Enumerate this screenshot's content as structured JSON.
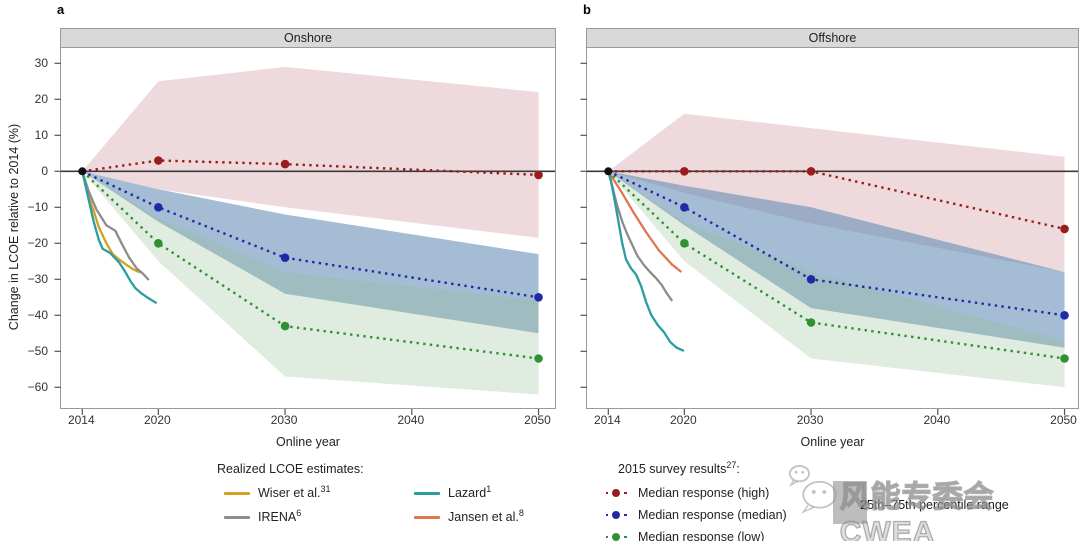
{
  "chart_data": {
    "type": "line",
    "axes": {
      "y_label": "Change in LCOE relative to 2014 (%)",
      "x_label": "Online year",
      "ylim": [
        -66,
        34
      ],
      "xlim": [
        2012.3,
        2051.5
      ],
      "y_ticks": [
        {
          "v": 30,
          "label": "30"
        },
        {
          "v": 20,
          "label": "20"
        },
        {
          "v": 10,
          "label": "10"
        },
        {
          "v": 0,
          "label": "0"
        },
        {
          "v": -10,
          "label": "−10"
        },
        {
          "v": -20,
          "label": "−20"
        },
        {
          "v": -30,
          "label": "−30"
        },
        {
          "v": -40,
          "label": "−40"
        },
        {
          "v": -50,
          "label": "−50"
        },
        {
          "v": -60,
          "label": "−60"
        }
      ],
      "x_ticks": [
        {
          "v": 2014,
          "label": "2014"
        },
        {
          "v": 2020,
          "label": "2020"
        },
        {
          "v": 2030,
          "label": "2030"
        },
        {
          "v": 2040,
          "label": "2040"
        },
        {
          "v": 2050,
          "label": "2050"
        }
      ]
    },
    "colors": {
      "survey_high": "#9b1c1c",
      "survey_median": "#2229a9",
      "survey_low": "#2e9132",
      "band_high": "rgba(194,120,130,0.27)",
      "band_median": "rgba(91,135,176,0.55)",
      "band_low": "rgba(143,187,143,0.28)",
      "wiser": "#d5a021",
      "irena": "#8c8c8c",
      "lazard": "#2b9da0",
      "jansen": "#e0764f",
      "zero_line": "#3a3a3a",
      "origin_dot": "#111111",
      "range_box": "#bdbdbd"
    },
    "panels": [
      {
        "panel_label": "a",
        "header": "Onshore",
        "survey": {
          "years": [
            2014,
            2020,
            2030,
            2050
          ],
          "marker_years": [
            2020,
            2030,
            2050
          ],
          "high": [
            0,
            3,
            2,
            -1
          ],
          "median": [
            0,
            -10,
            -24,
            -35
          ],
          "low": [
            0,
            -20,
            -43,
            -52
          ]
        },
        "bands": {
          "high": {
            "top": [
              [
                2014,
                0
              ],
              [
                2020,
                25
              ],
              [
                2030,
                29
              ],
              [
                2050,
                22
              ]
            ],
            "bottom": [
              [
                2014,
                0
              ],
              [
                2020,
                -5
              ],
              [
                2030,
                -10
              ],
              [
                2050,
                -18.5
              ]
            ]
          },
          "median": {
            "top": [
              [
                2014,
                0
              ],
              [
                2020,
                -5
              ],
              [
                2030,
                -12
              ],
              [
                2050,
                -23
              ]
            ],
            "bottom": [
              [
                2014,
                0
              ],
              [
                2020,
                -14
              ],
              [
                2030,
                -34
              ],
              [
                2050,
                -45
              ]
            ]
          },
          "low": {
            "top": [
              [
                2014,
                0
              ],
              [
                2020,
                -13
              ],
              [
                2030,
                -28
              ],
              [
                2050,
                -36
              ]
            ],
            "bottom": [
              [
                2014,
                0
              ],
              [
                2020,
                -25
              ],
              [
                2030,
                -57
              ],
              [
                2050,
                -62
              ]
            ]
          }
        },
        "realized": [
          {
            "key": "wiser",
            "points": [
              [
                2014,
                0
              ],
              [
                2014.4,
                -6
              ],
              [
                2014.9,
                -11
              ],
              [
                2015.3,
                -15.5
              ],
              [
                2015.9,
                -20
              ],
              [
                2016.4,
                -23
              ],
              [
                2016.9,
                -24.5
              ],
              [
                2017.5,
                -26
              ],
              [
                2018,
                -27.2
              ],
              [
                2018.5,
                -28
              ]
            ]
          },
          {
            "key": "irena",
            "points": [
              [
                2014,
                0
              ],
              [
                2014.5,
                -5.5
              ],
              [
                2015.1,
                -10.5
              ],
              [
                2015.9,
                -15
              ],
              [
                2016.6,
                -16.5
              ],
              [
                2017.1,
                -20
              ],
              [
                2017.7,
                -24
              ],
              [
                2018.3,
                -27
              ],
              [
                2018.8,
                -28.5
              ],
              [
                2019.2,
                -30
              ]
            ]
          },
          {
            "key": "lazard",
            "points": [
              [
                2014,
                0
              ],
              [
                2014.35,
                -5.5
              ],
              [
                2014.9,
                -14
              ],
              [
                2015.3,
                -19
              ],
              [
                2015.6,
                -21.5
              ],
              [
                2016.2,
                -22.7
              ],
              [
                2016.9,
                -25.3
              ],
              [
                2017.4,
                -28
              ],
              [
                2017.8,
                -30.5
              ],
              [
                2018.2,
                -32.5
              ],
              [
                2018.7,
                -34
              ],
              [
                2019.2,
                -35.2
              ],
              [
                2019.8,
                -36.5
              ]
            ]
          }
        ]
      },
      {
        "panel_label": "b",
        "header": "Offshore",
        "survey": {
          "years": [
            2014,
            2020,
            2030,
            2050
          ],
          "marker_years": [
            2020,
            2030,
            2050
          ],
          "high": [
            0,
            0,
            0,
            -16
          ],
          "median": [
            0,
            -10,
            -30,
            -40
          ],
          "low": [
            0,
            -20,
            -42,
            -52
          ]
        },
        "bands": {
          "high": {
            "top": [
              [
                2014,
                0
              ],
              [
                2020,
                16
              ],
              [
                2030,
                12
              ],
              [
                2050,
                4
              ]
            ],
            "bottom": [
              [
                2014,
                0
              ],
              [
                2020,
                -6
              ],
              [
                2030,
                -14.5
              ],
              [
                2050,
                -28
              ]
            ]
          },
          "median": {
            "top": [
              [
                2014,
                0
              ],
              [
                2020,
                -4
              ],
              [
                2030,
                -10
              ],
              [
                2050,
                -28
              ]
            ],
            "bottom": [
              [
                2014,
                0
              ],
              [
                2020,
                -15
              ],
              [
                2030,
                -38
              ],
              [
                2050,
                -49
              ]
            ]
          },
          "low": {
            "top": [
              [
                2014,
                0
              ],
              [
                2020,
                -14
              ],
              [
                2030,
                -28
              ],
              [
                2050,
                -47
              ]
            ],
            "bottom": [
              [
                2014,
                0
              ],
              [
                2020,
                -25
              ],
              [
                2030,
                -52
              ],
              [
                2050,
                -60
              ]
            ]
          }
        },
        "realized": [
          {
            "key": "irena",
            "points": [
              [
                2014,
                0
              ],
              [
                2014.3,
                -4
              ],
              [
                2014.7,
                -9.5
              ],
              [
                2015.1,
                -14
              ],
              [
                2015.5,
                -17.5
              ],
              [
                2015.9,
                -20.5
              ],
              [
                2016.3,
                -23.5
              ],
              [
                2016.8,
                -26
              ],
              [
                2017.3,
                -28
              ],
              [
                2017.8,
                -29.8
              ],
              [
                2018.2,
                -31.5
              ],
              [
                2018.6,
                -33.8
              ],
              [
                2019,
                -35.8
              ]
            ]
          },
          {
            "key": "jansen",
            "points": [
              [
                2014,
                0
              ],
              [
                2015,
                -5.5
              ],
              [
                2016,
                -11.5
              ],
              [
                2017,
                -17
              ],
              [
                2018,
                -22
              ],
              [
                2019,
                -25.8
              ],
              [
                2019.7,
                -27.8
              ]
            ]
          },
          {
            "key": "lazard",
            "points": [
              [
                2014,
                0
              ],
              [
                2014.2,
                -2.5
              ],
              [
                2014.5,
                -8
              ],
              [
                2014.8,
                -14
              ],
              [
                2015.1,
                -20
              ],
              [
                2015.4,
                -24.5
              ],
              [
                2015.8,
                -27
              ],
              [
                2016.2,
                -28.7
              ],
              [
                2016.6,
                -32
              ],
              [
                2017,
                -36.5
              ],
              [
                2017.4,
                -40
              ],
              [
                2017.9,
                -42.7
              ],
              [
                2018.4,
                -44.7
              ],
              [
                2018.9,
                -47.5
              ],
              [
                2019.4,
                -49
              ],
              [
                2019.9,
                -49.8
              ]
            ]
          }
        ]
      }
    ]
  },
  "legend_left": {
    "title": "Realized LCOE estimates:",
    "items": [
      {
        "key": "wiser",
        "label": "Wiser et al.",
        "sup": "31"
      },
      {
        "key": "irena",
        "label": "IRENA",
        "sup": "6"
      },
      {
        "key": "lazard",
        "label": "Lazard",
        "sup": "1"
      },
      {
        "key": "jansen",
        "label": "Jansen et al.",
        "sup": "8"
      }
    ]
  },
  "legend_right": {
    "title_pre": "2015 survey results",
    "title_sup": "27",
    "title_post": ":",
    "items": [
      {
        "key": "survey_high",
        "label": "Median response (high)"
      },
      {
        "key": "survey_median",
        "label": "Median response (median)"
      },
      {
        "key": "survey_low",
        "label": "Median response (low)"
      }
    ],
    "range_label": "25th–75th percentile range"
  },
  "watermark": {
    "text": "风能专委会CWEA"
  }
}
